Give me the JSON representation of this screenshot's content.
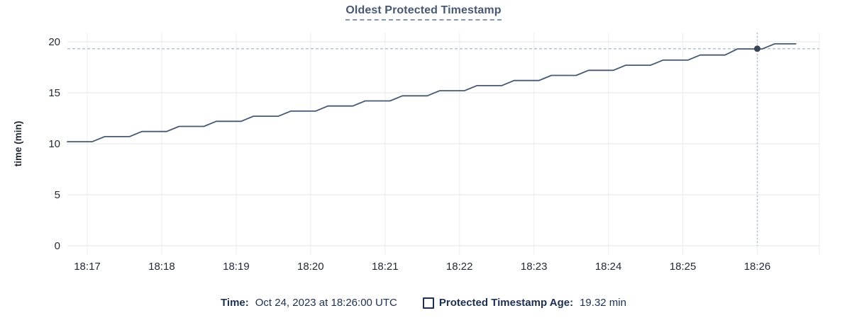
{
  "title": {
    "text": "Oldest Protected Timestamp"
  },
  "chart_data": {
    "type": "line",
    "title": "Oldest Protected Timestamp",
    "xlabel": "",
    "ylabel": "time (min)",
    "ylim": [
      0,
      20
    ],
    "yticks": [
      0,
      5,
      10,
      15,
      20
    ],
    "x_unit": "seconds relative to 18:17:00",
    "x_domain_seconds": [
      -16,
      590
    ],
    "xticks": [
      {
        "label": "18:17",
        "t": 0
      },
      {
        "label": "18:18",
        "t": 60
      },
      {
        "label": "18:19",
        "t": 120
      },
      {
        "label": "18:20",
        "t": 180
      },
      {
        "label": "18:21",
        "t": 240
      },
      {
        "label": "18:22",
        "t": 300
      },
      {
        "label": "18:23",
        "t": 360
      },
      {
        "label": "18:24",
        "t": 420
      },
      {
        "label": "18:25",
        "t": 480
      },
      {
        "label": "18:26",
        "t": 540
      }
    ],
    "grid": "both",
    "legend_position": "bottom",
    "series": [
      {
        "name": "Protected Timestamp Age",
        "unit": "min",
        "color": "#475872",
        "points": [
          [
            -16,
            10.2
          ],
          [
            4,
            10.2
          ],
          [
            14,
            10.7
          ],
          [
            34,
            10.7
          ],
          [
            44,
            11.2
          ],
          [
            64,
            11.2
          ],
          [
            74,
            11.7
          ],
          [
            94,
            11.7
          ],
          [
            104,
            12.2
          ],
          [
            124,
            12.2
          ],
          [
            134,
            12.7
          ],
          [
            154,
            12.7
          ],
          [
            164,
            13.2
          ],
          [
            184,
            13.2
          ],
          [
            194,
            13.7
          ],
          [
            214,
            13.7
          ],
          [
            224,
            14.2
          ],
          [
            244,
            14.2
          ],
          [
            254,
            14.7
          ],
          [
            274,
            14.7
          ],
          [
            284,
            15.2
          ],
          [
            304,
            15.2
          ],
          [
            314,
            15.7
          ],
          [
            334,
            15.7
          ],
          [
            344,
            16.2
          ],
          [
            364,
            16.2
          ],
          [
            374,
            16.7
          ],
          [
            394,
            16.7
          ],
          [
            404,
            17.2
          ],
          [
            424,
            17.2
          ],
          [
            434,
            17.7
          ],
          [
            454,
            17.7
          ],
          [
            464,
            18.2
          ],
          [
            484,
            18.2
          ],
          [
            494,
            18.7
          ],
          [
            514,
            18.7
          ],
          [
            524,
            19.3
          ],
          [
            544,
            19.3
          ],
          [
            554,
            19.8
          ],
          [
            571,
            19.8
          ]
        ]
      }
    ],
    "hover_point": {
      "time_label": "18:26:00",
      "t": 540,
      "value": 19.32
    }
  },
  "legend": {
    "time_label": "Time:",
    "time_value": "Oct 24, 2023 at 18:26:00 UTC",
    "series_label": "Protected Timestamp Age:",
    "series_value": "19.32 min"
  },
  "colors": {
    "line": "#475872",
    "dot": "#394455",
    "crosshair": "#a8bfcc",
    "grid_h": "#e9e9e9",
    "grid_v": "#f1f1f1",
    "axis_text": "#242a35",
    "title": "#475872",
    "legend_text": "#1d3050"
  }
}
